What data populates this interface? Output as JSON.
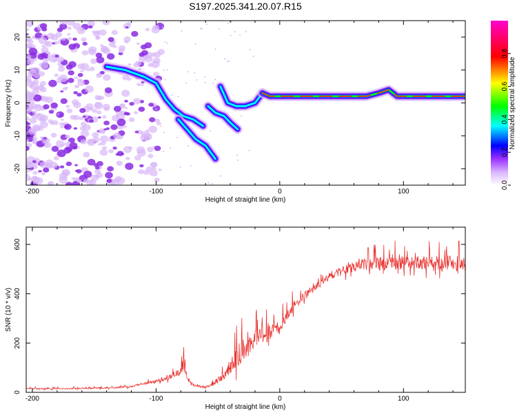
{
  "title": "S197.2025.341.20.07.R15",
  "chart_data": [
    {
      "type": "heatmap",
      "name": "spectrogram",
      "xlabel": "Height of straight line (km)",
      "ylabel": "Frequency (Hz)",
      "xlim": [
        -205,
        150
      ],
      "ylim": [
        -25,
        25
      ],
      "xticks": [
        -200,
        -100,
        0,
        100
      ],
      "yticks": [
        -20,
        -10,
        0,
        10,
        20
      ],
      "colorbar": {
        "label": "Normalized spectral amplitude",
        "range": [
          0,
          1
        ],
        "ticks": [
          "0.0",
          "0.2",
          "0.4",
          "0.6",
          "0.8"
        ],
        "tick_values": [
          0.0,
          0.2,
          0.4,
          0.6,
          0.8
        ],
        "colormap": [
          "#ffffff",
          "#9b30ff",
          "#0000ff",
          "#00ffff",
          "#00ff00",
          "#ffff00",
          "#ff0000",
          "#ff00cc"
        ]
      },
      "ridges": [
        {
          "x": [
            -140,
            -125,
            -110,
            -100,
            -92,
            -85,
            -78,
            -70,
            -62
          ],
          "y": [
            11,
            10,
            8,
            6,
            1,
            -2,
            -4,
            -5,
            -7
          ]
        },
        {
          "x": [
            -82,
            -75,
            -68,
            -60,
            -52
          ],
          "y": [
            -5,
            -8,
            -11,
            -13,
            -17
          ]
        },
        {
          "x": [
            -58,
            -52,
            -45,
            -40,
            -34
          ],
          "y": [
            -1,
            -3,
            -4,
            -6,
            -8
          ]
        },
        {
          "x": [
            -48,
            -42,
            -35,
            -28,
            -20,
            -14
          ],
          "y": [
            5,
            0,
            -1,
            -1,
            0,
            3
          ]
        },
        {
          "x": [
            -14,
            -8,
            0,
            10,
            40,
            70,
            80,
            88,
            95,
            150
          ],
          "y": [
            3,
            2,
            2,
            2,
            2,
            2,
            3,
            4,
            2,
            2
          ]
        }
      ]
    },
    {
      "type": "line",
      "name": "snr",
      "xlabel": "Height of straight line (km)",
      "ylabel": "SNR (10 * v/v)",
      "xlim": [
        -205,
        150
      ],
      "ylim": [
        0,
        670
      ],
      "xticks": [
        -200,
        -100,
        0,
        100
      ],
      "yticks": [
        0,
        200,
        400,
        600
      ],
      "color": "#e8322f",
      "series": [
        {
          "name": "SNR",
          "x": [
            -205,
            -190,
            -175,
            -160,
            -145,
            -130,
            -120,
            -110,
            -100,
            -90,
            -85,
            -80,
            -78,
            -75,
            -70,
            -60,
            -55,
            -50,
            -45,
            -40,
            -35,
            -30,
            -25,
            -20,
            -15,
            -10,
            -5,
            0,
            5,
            10,
            15,
            20,
            25,
            30,
            40,
            50,
            60,
            70,
            80,
            90,
            100,
            110,
            120,
            130,
            140,
            150
          ],
          "y": [
            15,
            15,
            15,
            16,
            18,
            20,
            24,
            35,
            45,
            60,
            75,
            80,
            120,
            60,
            30,
            20,
            30,
            50,
            70,
            100,
            140,
            170,
            200,
            220,
            230,
            240,
            250,
            270,
            300,
            340,
            370,
            390,
            410,
            430,
            470,
            490,
            510,
            520,
            520,
            525,
            525,
            525,
            525,
            525,
            525,
            525
          ],
          "spike_amplitude": [
            8,
            8,
            8,
            8,
            9,
            10,
            12,
            15,
            20,
            30,
            40,
            60,
            100,
            30,
            15,
            15,
            20,
            40,
            60,
            80,
            140,
            180,
            150,
            130,
            120,
            100,
            90,
            80,
            70,
            70,
            60,
            60,
            50,
            50,
            50,
            60,
            70,
            80,
            90,
            100,
            90,
            90,
            90,
            90,
            90,
            90
          ]
        }
      ]
    }
  ]
}
